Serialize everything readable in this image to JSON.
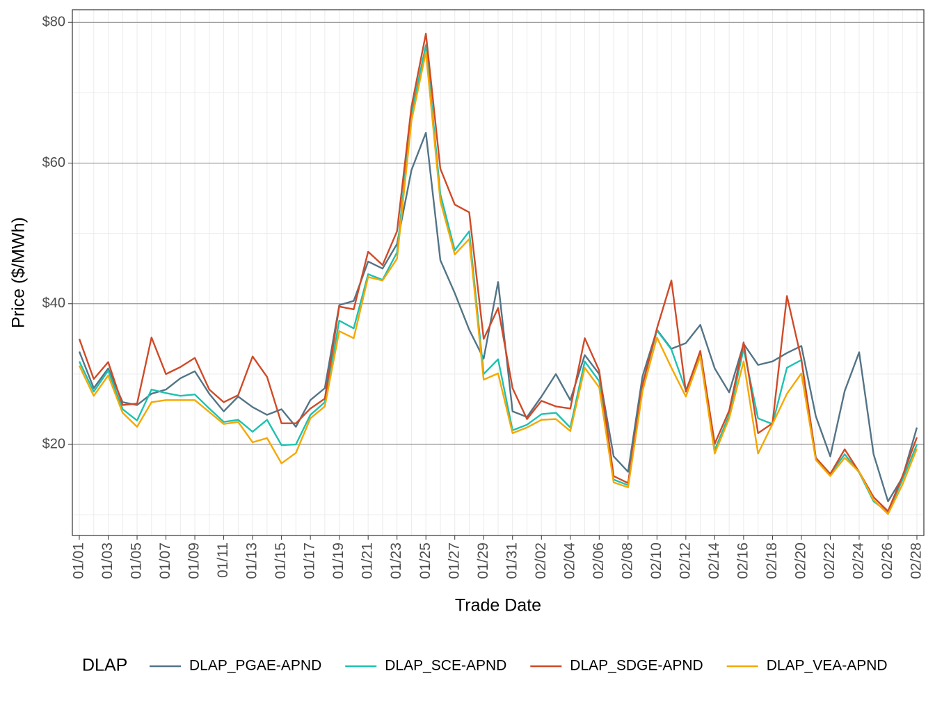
{
  "chart_data": {
    "type": "line",
    "x_label": "Trade Date",
    "y_label": "Price ($/MWh)",
    "legend_title": "DLAP",
    "categories": [
      "01/01",
      null,
      "01/03",
      null,
      "01/05",
      null,
      "01/07",
      null,
      "01/09",
      null,
      "01/11",
      null,
      "01/13",
      null,
      "01/15",
      null,
      "01/17",
      null,
      "01/19",
      null,
      "01/21",
      null,
      "01/23",
      null,
      "01/25",
      null,
      "01/27",
      null,
      "01/29",
      null,
      "01/31",
      null,
      "02/02",
      null,
      "02/04",
      null,
      "02/06",
      null,
      "02/08",
      null,
      "02/10",
      null,
      "02/12",
      null,
      "02/14",
      null,
      "02/16",
      null,
      "02/18",
      null,
      "02/20",
      null,
      "02/22",
      null,
      "02/24",
      null,
      "02/26",
      null,
      "02/28"
    ],
    "ylim": [
      7.05,
      81.8
    ],
    "yticks": [
      {
        "value": 20,
        "label": "$20"
      },
      {
        "value": 40,
        "label": "$40"
      },
      {
        "value": 60,
        "label": "$60"
      },
      {
        "value": 80,
        "label": "$80"
      }
    ],
    "grid": true,
    "legend": "bottom",
    "series": [
      {
        "name": "DLAP_PGAE-APND",
        "color": "#537486",
        "values": [
          33.2,
          28,
          30.8,
          26,
          25.6,
          27.2,
          27.8,
          29.4,
          30.4,
          27.2,
          24.7,
          26.8,
          25.3,
          24.2,
          25,
          22.5,
          26.3,
          28,
          39.8,
          40.4,
          46,
          45,
          48.5,
          59,
          64.3,
          46.2,
          41.5,
          36.3,
          32.2,
          43.1,
          24.7,
          23.9,
          26.8,
          30,
          26.3,
          32.7,
          30,
          18.3,
          16.1,
          29.7,
          36.3,
          33.6,
          34.4,
          37,
          30.8,
          27.4,
          34.3,
          31.3,
          31.8,
          33,
          34,
          24,
          18.3,
          27.6,
          33.1,
          18.6,
          11.9,
          15.3,
          22.4
        ]
      },
      {
        "name": "DLAP_SCE-APND",
        "color": "#1dc2b0",
        "values": [
          31.8,
          27.5,
          30.5,
          25,
          23.4,
          27.8,
          27.3,
          26.9,
          27.1,
          25.1,
          23.2,
          23.5,
          21.8,
          23.5,
          19.9,
          20,
          24.2,
          26,
          37.6,
          36.5,
          44.2,
          43.4,
          47.3,
          67,
          76.8,
          55.6,
          47.6,
          50.3,
          30,
          32.1,
          22,
          22.8,
          24.3,
          24.5,
          22.4,
          31.8,
          29,
          15,
          14.2,
          28.5,
          36.2,
          33.5,
          27.7,
          32.6,
          19.2,
          24.2,
          33.6,
          23.7,
          22.9,
          30.9,
          32,
          18.1,
          15.8,
          18.6,
          16,
          11.9,
          10.4,
          15,
          20
        ]
      },
      {
        "name": "DLAP_SDGE-APND",
        "color": "#d04a27",
        "values": [
          35,
          29.3,
          31.7,
          25.6,
          25.8,
          35.2,
          30,
          31,
          32.3,
          27.8,
          26,
          27,
          32.5,
          29.6,
          23,
          23,
          25.1,
          26.5,
          39.6,
          39.2,
          47.4,
          45.5,
          50.3,
          68,
          78.4,
          59.2,
          54.1,
          53,
          35,
          39.4,
          28,
          23.6,
          26.2,
          25.4,
          25.1,
          35.1,
          30.5,
          15.5,
          14.5,
          28.5,
          36.5,
          43.3,
          27.5,
          33.3,
          20.1,
          24.8,
          34.5,
          21.6,
          23,
          41.1,
          32.1,
          18.1,
          15.8,
          19.3,
          16.1,
          12.5,
          10.5,
          15.5,
          21
        ]
      },
      {
        "name": "DLAP_VEA-APND",
        "color": "#f5a800",
        "values": [
          31.2,
          26.9,
          29.8,
          24.5,
          22.5,
          26,
          26.3,
          26.3,
          26.3,
          24.6,
          22.9,
          23.2,
          20.3,
          20.9,
          17.3,
          18.8,
          23.7,
          25.4,
          36.1,
          35.1,
          43.8,
          43.3,
          46.4,
          66,
          75.8,
          54.6,
          47,
          49.2,
          29.2,
          30.1,
          21.6,
          22.4,
          23.5,
          23.6,
          21.9,
          30.9,
          28.1,
          14.6,
          13.9,
          27.6,
          35.2,
          30.9,
          26.8,
          32.5,
          18.7,
          23.7,
          31.8,
          18.7,
          22.9,
          27.2,
          30.1,
          17.8,
          15.5,
          18.1,
          16.1,
          12.1,
          10.1,
          14.3,
          19.4
        ]
      }
    ]
  }
}
